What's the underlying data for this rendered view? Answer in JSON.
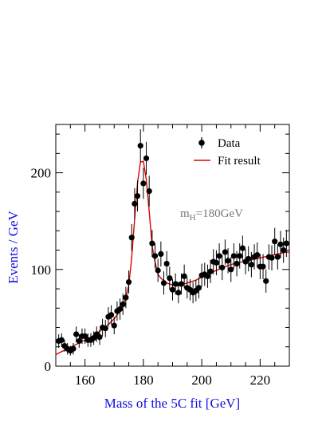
{
  "chart_data": {
    "type": "scatter",
    "xlabel": "Mass of the 5C fit  [GeV]",
    "ylabel": "Events / GeV",
    "xlim": [
      150,
      230
    ],
    "ylim": [
      0,
      250
    ],
    "xticks": [
      160,
      180,
      200,
      220
    ],
    "xtick_labels": [
      "160",
      "180",
      "200",
      "220"
    ],
    "yticks": [
      0,
      100,
      200
    ],
    "ytick_labels": [
      "0",
      "100",
      "200"
    ],
    "legend": {
      "placement": "top-right",
      "entries": [
        {
          "label": "Data",
          "marker": "point-with-errorbar",
          "color": "#000000"
        },
        {
          "label": "Fit result",
          "marker": "line",
          "color": "#dd0000"
        }
      ]
    },
    "annotation": {
      "text_main": "m",
      "text_sub": "H",
      "text_rest": "=180GeV"
    },
    "grid": false,
    "series": [
      {
        "name": "Data",
        "color": "#000000",
        "x": [
          151,
          152,
          153,
          154,
          155,
          156,
          157,
          158,
          159,
          160,
          161,
          162,
          163,
          164,
          165,
          166,
          167,
          168,
          169,
          170,
          171,
          172,
          173,
          174,
          175,
          176,
          177,
          178,
          179,
          180,
          181,
          182,
          183,
          184,
          185,
          186,
          187,
          188,
          189,
          190,
          191,
          192,
          193,
          194,
          195,
          196,
          197,
          198,
          199,
          200,
          201,
          202,
          203,
          204,
          205,
          206,
          207,
          208,
          209,
          210,
          211,
          212,
          213,
          214,
          215,
          216,
          217,
          218,
          219,
          220,
          221,
          222,
          223,
          224,
          225,
          226,
          227,
          228,
          229
        ],
        "y": [
          26,
          27,
          21,
          18,
          16,
          18,
          33,
          26,
          31,
          31,
          27,
          27,
          29,
          33,
          30,
          40,
          39,
          51,
          53,
          42,
          57,
          59,
          64,
          71,
          87,
          133,
          168,
          176,
          228,
          189,
          215,
          181,
          127,
          114,
          99,
          116,
          86,
          106,
          91,
          79,
          85,
          76,
          85,
          93,
          81,
          79,
          76,
          78,
          81,
          94,
          95,
          93,
          98,
          108,
          107,
          114,
          102,
          118,
          109,
          100,
          114,
          106,
          114,
          122,
          108,
          111,
          105,
          113,
          115,
          103,
          103,
          88,
          113,
          112,
          129,
          113,
          126,
          120,
          127
        ],
        "err": [
          7,
          7,
          6,
          6,
          5,
          6,
          8,
          7,
          8,
          8,
          7,
          7,
          7,
          8,
          8,
          9,
          9,
          10,
          10,
          9,
          10,
          11,
          11,
          11,
          12,
          14,
          16,
          16,
          17,
          16,
          17,
          16,
          14,
          13,
          12,
          13,
          12,
          13,
          12,
          11,
          11,
          11,
          11,
          12,
          11,
          11,
          11,
          11,
          11,
          12,
          12,
          12,
          12,
          13,
          13,
          13,
          13,
          13,
          13,
          13,
          13,
          13,
          13,
          13,
          13,
          13,
          13,
          13,
          13,
          13,
          13,
          12,
          13,
          13,
          14,
          13,
          14,
          13,
          14
        ]
      },
      {
        "name": "Fit result",
        "color": "#dd0000",
        "x": [
          150,
          152,
          154,
          156,
          158,
          160,
          162,
          164,
          166,
          168,
          170,
          172,
          174,
          175,
          176,
          177,
          178,
          179,
          180,
          181,
          182,
          183,
          184,
          185,
          186,
          188,
          190,
          192,
          194,
          196,
          198,
          200,
          202,
          205,
          208,
          211,
          214,
          217,
          220,
          223,
          226,
          229,
          230
        ],
        "y": [
          12,
          15,
          18,
          21,
          24,
          27,
          30,
          34,
          38,
          43,
          49,
          57,
          70,
          84,
          112,
          152,
          190,
          211,
          212,
          193,
          160,
          124,
          108,
          95,
          91,
          86,
          84,
          83,
          85,
          87,
          89,
          92,
          95,
          99,
          103,
          106,
          108,
          110,
          112,
          114,
          116,
          118,
          118
        ]
      }
    ]
  }
}
